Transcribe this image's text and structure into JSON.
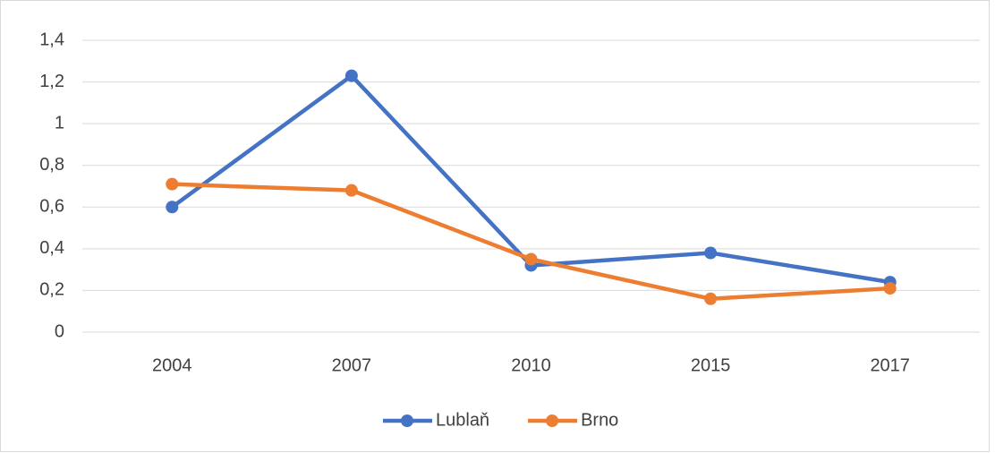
{
  "chart_data": {
    "type": "line",
    "categories": [
      "2004",
      "2007",
      "2010",
      "2015",
      "2017"
    ],
    "series": [
      {
        "name": "Lublaň",
        "color": "#4472c4",
        "values": [
          0.6,
          1.23,
          0.32,
          0.38,
          0.24
        ]
      },
      {
        "name": "Brno",
        "color": "#ed7d31",
        "values": [
          0.71,
          0.68,
          0.35,
          0.16,
          0.21
        ]
      }
    ],
    "ylim": [
      0,
      1.4
    ],
    "yticks": [
      0,
      {
        "value": 0.2,
        "label": "0,2"
      },
      {
        "value": 0.4,
        "label": "0,4"
      },
      {
        "value": 0.6,
        "label": "0,6"
      },
      {
        "value": 0.8,
        "label": "0,8"
      },
      1,
      {
        "value": 1.2,
        "label": "1,2"
      },
      {
        "value": 1.4,
        "label": "1,4"
      }
    ],
    "grid": true,
    "legend": "bottom"
  }
}
